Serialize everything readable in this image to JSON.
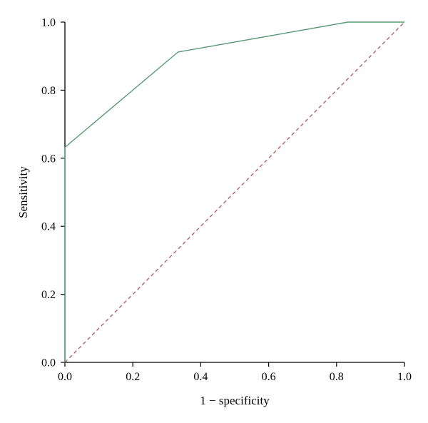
{
  "chart_data": {
    "type": "line",
    "xlabel": "1 − specificity",
    "ylabel": "Sensitivity",
    "xlim": [
      0,
      1
    ],
    "ylim": [
      0,
      1
    ],
    "grid": false,
    "x_ticks": [
      "0.0",
      "0.2",
      "0.4",
      "0.6",
      "0.8",
      "1.0"
    ],
    "y_ticks": [
      "0.0",
      "0.2",
      "0.4",
      "0.6",
      "0.8",
      "1.0"
    ],
    "series": [
      {
        "style": "solid",
        "color": "#5a9a76",
        "points": [
          {
            "x": 0.0,
            "y": 0.0
          },
          {
            "x": 0.0,
            "y": 0.632
          },
          {
            "x": 0.333,
            "y": 0.912
          },
          {
            "x": 0.833,
            "y": 1.0
          },
          {
            "x": 1.0,
            "y": 1.0
          }
        ]
      },
      {
        "style": "dashed",
        "color": "#b5606e",
        "points": [
          {
            "x": 0.0,
            "y": 0.0
          },
          {
            "x": 1.0,
            "y": 1.0
          }
        ]
      }
    ]
  }
}
